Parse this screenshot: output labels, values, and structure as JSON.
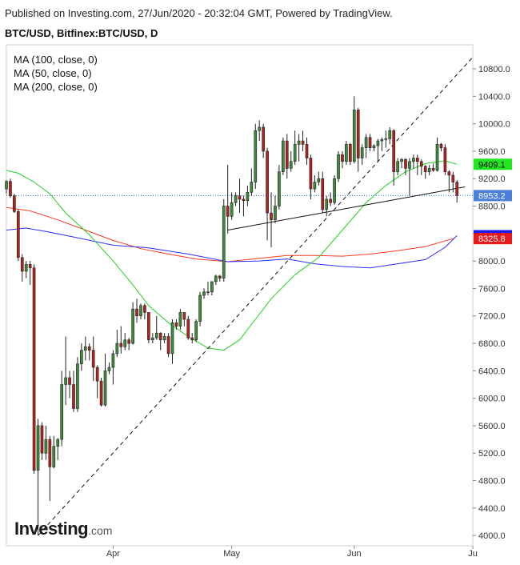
{
  "header": {
    "published": "Published on Investing.com, 27/Jun/2020 - 20:32:04 GMT, Powered by TradingView.",
    "symbol": "BTC/USD, Bitfinex:BTC/USD, D"
  },
  "indicators": [
    {
      "label": "MA (100, close, 0)",
      "color": "#2c2cff"
    },
    {
      "label": "MA (50, close, 0)",
      "color": "#ff3b1f"
    },
    {
      "label": "MA (200, close, 0)",
      "color": "#1fd21f"
    }
  ],
  "logo": {
    "main": "Investing",
    "suffix": ".com"
  },
  "chart_data": {
    "type": "candlestick",
    "x_ticks": [
      {
        "label": "Apr",
        "date": "2020-04-01"
      },
      {
        "label": "May",
        "date": "2020-05-01"
      },
      {
        "label": "Jun",
        "date": "2020-06-01"
      },
      {
        "label": "Ju",
        "date": "2020-07-01"
      }
    ],
    "y_ticks": [
      "4000.0",
      "4400.0",
      "4800.0",
      "5200.0",
      "5600.0",
      "6000.0",
      "6400.0",
      "6800.0",
      "7200.0",
      "7600.0",
      "8000.0",
      "8400.0",
      "8800.0",
      "9200.0",
      "9600.0",
      "10000.0",
      "10400.0",
      "10800.0"
    ],
    "ylim": [
      3850,
      11150
    ],
    "xlim": [
      "2020-03-05",
      "2020-07-01"
    ],
    "price_line": 8953.2,
    "badges": [
      {
        "label": "9409.1",
        "value": 9409.1,
        "bg": "#22e622",
        "fg": "#000000"
      },
      {
        "label": "8953.2",
        "value": 8953.2,
        "bg": "#4a7fdc",
        "fg": "#ffffff"
      },
      {
        "label": "8369.5",
        "value": 8369.5,
        "bg": "#1c1cf0",
        "fg": "#ffffff"
      },
      {
        "label": "8325.8",
        "value": 8325.8,
        "bg": "#e8191d",
        "fg": "#ffffff"
      }
    ],
    "colors": {
      "up": "#3c8c3c",
      "down": "#b2221e",
      "ma50": "#ff3b1f",
      "ma100": "#2c2cff",
      "ma200": "#1fd21f",
      "price_line": "#2f6fb3"
    },
    "trendlines": [
      {
        "style": "dashed",
        "from": [
          "2020-03-13",
          4000
        ],
        "to": [
          "2020-07-01",
          10970
        ]
      },
      {
        "style": "solid",
        "from": [
          "2020-04-30",
          8450
        ],
        "to": [
          "2020-06-29",
          9080
        ]
      }
    ],
    "ma50_points": [
      [
        "2020-03-05",
        8780
      ],
      [
        "2020-03-11",
        8730
      ],
      [
        "2020-03-18",
        8600
      ],
      [
        "2020-03-25",
        8450
      ],
      [
        "2020-04-01",
        8300
      ],
      [
        "2020-04-08",
        8180
      ],
      [
        "2020-04-15",
        8100
      ],
      [
        "2020-04-22",
        8030
      ],
      [
        "2020-04-30",
        7990
      ],
      [
        "2020-05-08",
        8040
      ],
      [
        "2020-05-15",
        8080
      ],
      [
        "2020-05-22",
        8080
      ],
      [
        "2020-05-29",
        8070
      ],
      [
        "2020-06-05",
        8100
      ],
      [
        "2020-06-12",
        8150
      ],
      [
        "2020-06-19",
        8210
      ],
      [
        "2020-06-26",
        8325.8
      ]
    ],
    "ma100_points": [
      [
        "2020-03-05",
        8450
      ],
      [
        "2020-03-10",
        8480
      ],
      [
        "2020-03-15",
        8430
      ],
      [
        "2020-03-22",
        8350
      ],
      [
        "2020-04-01",
        8230
      ],
      [
        "2020-04-10",
        8190
      ],
      [
        "2020-04-20",
        8100
      ],
      [
        "2020-04-30",
        7990
      ],
      [
        "2020-05-08",
        8000
      ],
      [
        "2020-05-15",
        8030
      ],
      [
        "2020-05-22",
        7960
      ],
      [
        "2020-05-29",
        7920
      ],
      [
        "2020-06-05",
        7900
      ],
      [
        "2020-06-12",
        7960
      ],
      [
        "2020-06-19",
        8020
      ],
      [
        "2020-06-24",
        8200
      ],
      [
        "2020-06-27",
        8369.5
      ]
    ],
    "ma200_points": [
      [
        "2020-03-05",
        9320
      ],
      [
        "2020-03-08",
        9280
      ],
      [
        "2020-03-12",
        9150
      ],
      [
        "2020-03-16",
        8980
      ],
      [
        "2020-03-20",
        8700
      ],
      [
        "2020-03-26",
        8380
      ],
      [
        "2020-04-01",
        8000
      ],
      [
        "2020-04-06",
        7650
      ],
      [
        "2020-04-10",
        7350
      ],
      [
        "2020-04-15",
        7100
      ],
      [
        "2020-04-20",
        6900
      ],
      [
        "2020-04-25",
        6730
      ],
      [
        "2020-04-29",
        6700
      ],
      [
        "2020-05-03",
        6850
      ],
      [
        "2020-05-07",
        7150
      ],
      [
        "2020-05-11",
        7450
      ],
      [
        "2020-05-17",
        7800
      ],
      [
        "2020-05-23",
        8050
      ],
      [
        "2020-05-29",
        8450
      ],
      [
        "2020-06-04",
        8850
      ],
      [
        "2020-06-09",
        9100
      ],
      [
        "2020-06-14",
        9300
      ],
      [
        "2020-06-19",
        9420
      ],
      [
        "2020-06-24",
        9460
      ],
      [
        "2020-06-27",
        9409.1
      ]
    ],
    "candles": [
      {
        "t": "2020-03-05",
        "o": 9050,
        "h": 9180,
        "l": 8980,
        "c": 9160
      },
      {
        "t": "2020-03-06",
        "o": 9160,
        "h": 9200,
        "l": 8920,
        "c": 8950
      },
      {
        "t": "2020-03-07",
        "o": 8950,
        "h": 8980,
        "l": 8700,
        "c": 8720
      },
      {
        "t": "2020-03-08",
        "o": 8720,
        "h": 8750,
        "l": 8000,
        "c": 8050
      },
      {
        "t": "2020-03-09",
        "o": 8050,
        "h": 8100,
        "l": 7700,
        "c": 7850
      },
      {
        "t": "2020-03-10",
        "o": 7850,
        "h": 8000,
        "l": 7750,
        "c": 7950
      },
      {
        "t": "2020-03-11",
        "o": 7950,
        "h": 8000,
        "l": 7650,
        "c": 7900
      },
      {
        "t": "2020-03-12",
        "o": 7900,
        "h": 7950,
        "l": 4900,
        "c": 4950
      },
      {
        "t": "2020-03-13",
        "o": 4950,
        "h": 5700,
        "l": 4000,
        "c": 5600
      },
      {
        "t": "2020-03-14",
        "o": 5600,
        "h": 5650,
        "l": 5100,
        "c": 5200
      },
      {
        "t": "2020-03-15",
        "o": 5200,
        "h": 5600,
        "l": 5100,
        "c": 5400
      },
      {
        "t": "2020-03-16",
        "o": 5400,
        "h": 5450,
        "l": 4500,
        "c": 5000
      },
      {
        "t": "2020-03-17",
        "o": 5000,
        "h": 5450,
        "l": 4980,
        "c": 5300
      },
      {
        "t": "2020-03-18",
        "o": 5300,
        "h": 5420,
        "l": 5100,
        "c": 5400
      },
      {
        "t": "2020-03-19",
        "o": 5400,
        "h": 6400,
        "l": 5300,
        "c": 6200
      },
      {
        "t": "2020-03-20",
        "o": 6200,
        "h": 6900,
        "l": 5900,
        "c": 6300
      },
      {
        "t": "2020-03-21",
        "o": 6300,
        "h": 6400,
        "l": 6000,
        "c": 6200
      },
      {
        "t": "2020-03-22",
        "o": 6200,
        "h": 6400,
        "l": 5800,
        "c": 5850
      },
      {
        "t": "2020-03-23",
        "o": 5850,
        "h": 6600,
        "l": 5800,
        "c": 6500
      },
      {
        "t": "2020-03-24",
        "o": 6500,
        "h": 6800,
        "l": 6400,
        "c": 6700
      },
      {
        "t": "2020-03-25",
        "o": 6700,
        "h": 6900,
        "l": 6550,
        "c": 6750
      },
      {
        "t": "2020-03-26",
        "o": 6750,
        "h": 6800,
        "l": 6550,
        "c": 6700
      },
      {
        "t": "2020-03-27",
        "o": 6700,
        "h": 6900,
        "l": 6250,
        "c": 6450
      },
      {
        "t": "2020-03-28",
        "o": 6450,
        "h": 6480,
        "l": 6000,
        "c": 6250
      },
      {
        "t": "2020-03-29",
        "o": 6250,
        "h": 6300,
        "l": 5880,
        "c": 5900
      },
      {
        "t": "2020-03-30",
        "o": 5900,
        "h": 6650,
        "l": 5880,
        "c": 6400
      },
      {
        "t": "2020-03-31",
        "o": 6400,
        "h": 6520,
        "l": 6350,
        "c": 6450
      },
      {
        "t": "2020-04-01",
        "o": 6450,
        "h": 6700,
        "l": 6200,
        "c": 6650
      },
      {
        "t": "2020-04-02",
        "o": 6650,
        "h": 7000,
        "l": 6600,
        "c": 6800
      },
      {
        "t": "2020-04-03",
        "o": 6800,
        "h": 7050,
        "l": 6650,
        "c": 6750
      },
      {
        "t": "2020-04-04",
        "o": 6750,
        "h": 6950,
        "l": 6700,
        "c": 6850
      },
      {
        "t": "2020-04-05",
        "o": 6850,
        "h": 6880,
        "l": 6700,
        "c": 6800
      },
      {
        "t": "2020-04-06",
        "o": 6800,
        "h": 7400,
        "l": 6780,
        "c": 7300
      },
      {
        "t": "2020-04-07",
        "o": 7300,
        "h": 7450,
        "l": 7100,
        "c": 7200
      },
      {
        "t": "2020-04-08",
        "o": 7200,
        "h": 7380,
        "l": 7150,
        "c": 7350
      },
      {
        "t": "2020-04-09",
        "o": 7350,
        "h": 7380,
        "l": 7150,
        "c": 7250
      },
      {
        "t": "2020-04-10",
        "o": 7250,
        "h": 7250,
        "l": 6800,
        "c": 6850
      },
      {
        "t": "2020-04-11",
        "o": 6850,
        "h": 6950,
        "l": 6800,
        "c": 6880
      },
      {
        "t": "2020-04-12",
        "o": 6880,
        "h": 7200,
        "l": 6850,
        "c": 6950
      },
      {
        "t": "2020-04-13",
        "o": 6950,
        "h": 6960,
        "l": 6700,
        "c": 6850
      },
      {
        "t": "2020-04-14",
        "o": 6850,
        "h": 6950,
        "l": 6800,
        "c": 6900
      },
      {
        "t": "2020-04-15",
        "o": 6900,
        "h": 6950,
        "l": 6600,
        "c": 6650
      },
      {
        "t": "2020-04-16",
        "o": 6650,
        "h": 7150,
        "l": 6500,
        "c": 7100
      },
      {
        "t": "2020-04-17",
        "o": 7100,
        "h": 7150,
        "l": 7000,
        "c": 7050
      },
      {
        "t": "2020-04-18",
        "o": 7050,
        "h": 7300,
        "l": 7000,
        "c": 7250
      },
      {
        "t": "2020-04-19",
        "o": 7250,
        "h": 7250,
        "l": 7050,
        "c": 7150
      },
      {
        "t": "2020-04-20",
        "o": 7150,
        "h": 7200,
        "l": 6850,
        "c": 6880
      },
      {
        "t": "2020-04-21",
        "o": 6880,
        "h": 6950,
        "l": 6800,
        "c": 6850
      },
      {
        "t": "2020-04-22",
        "o": 6850,
        "h": 7150,
        "l": 6820,
        "c": 7120
      },
      {
        "t": "2020-04-23",
        "o": 7120,
        "h": 7550,
        "l": 7050,
        "c": 7500
      },
      {
        "t": "2020-04-24",
        "o": 7500,
        "h": 7600,
        "l": 7450,
        "c": 7550
      },
      {
        "t": "2020-04-25",
        "o": 7550,
        "h": 7700,
        "l": 7500,
        "c": 7550
      },
      {
        "t": "2020-04-26",
        "o": 7550,
        "h": 7700,
        "l": 7500,
        "c": 7700
      },
      {
        "t": "2020-04-27",
        "o": 7700,
        "h": 7800,
        "l": 7650,
        "c": 7780
      },
      {
        "t": "2020-04-28",
        "o": 7780,
        "h": 7800,
        "l": 7700,
        "c": 7750
      },
      {
        "t": "2020-04-29",
        "o": 7750,
        "h": 8900,
        "l": 7700,
        "c": 8800
      },
      {
        "t": "2020-04-30",
        "o": 8800,
        "h": 9400,
        "l": 8400,
        "c": 8650
      },
      {
        "t": "2020-05-01",
        "o": 8650,
        "h": 9000,
        "l": 8600,
        "c": 8850
      },
      {
        "t": "2020-05-02",
        "o": 8850,
        "h": 9000,
        "l": 8800,
        "c": 8950
      },
      {
        "t": "2020-05-03",
        "o": 8950,
        "h": 9200,
        "l": 8700,
        "c": 8900
      },
      {
        "t": "2020-05-04",
        "o": 8900,
        "h": 8950,
        "l": 8650,
        "c": 8880
      },
      {
        "t": "2020-05-05",
        "o": 8880,
        "h": 9100,
        "l": 8800,
        "c": 9000
      },
      {
        "t": "2020-05-06",
        "o": 9000,
        "h": 9350,
        "l": 8950,
        "c": 9150
      },
      {
        "t": "2020-05-07",
        "o": 9150,
        "h": 10000,
        "l": 9050,
        "c": 9900
      },
      {
        "t": "2020-05-08",
        "o": 9900,
        "h": 10050,
        "l": 9750,
        "c": 9950
      },
      {
        "t": "2020-05-09",
        "o": 9950,
        "h": 10000,
        "l": 9500,
        "c": 9600
      },
      {
        "t": "2020-05-10",
        "o": 9600,
        "h": 9650,
        "l": 8300,
        "c": 8700
      },
      {
        "t": "2020-05-11",
        "o": 8700,
        "h": 9000,
        "l": 8200,
        "c": 8600
      },
      {
        "t": "2020-05-12",
        "o": 8600,
        "h": 8950,
        "l": 8550,
        "c": 8800
      },
      {
        "t": "2020-05-13",
        "o": 8800,
        "h": 9400,
        "l": 8750,
        "c": 9300
      },
      {
        "t": "2020-05-14",
        "o": 9300,
        "h": 9800,
        "l": 9250,
        "c": 9750
      },
      {
        "t": "2020-05-15",
        "o": 9750,
        "h": 9850,
        "l": 9200,
        "c": 9350
      },
      {
        "t": "2020-05-16",
        "o": 9350,
        "h": 9600,
        "l": 9300,
        "c": 9450
      },
      {
        "t": "2020-05-17",
        "o": 9450,
        "h": 9900,
        "l": 9400,
        "c": 9700
      },
      {
        "t": "2020-05-18",
        "o": 9700,
        "h": 9850,
        "l": 9450,
        "c": 9750
      },
      {
        "t": "2020-05-19",
        "o": 9750,
        "h": 9900,
        "l": 9600,
        "c": 9700
      },
      {
        "t": "2020-05-20",
        "o": 9700,
        "h": 9800,
        "l": 9400,
        "c": 9500
      },
      {
        "t": "2020-05-21",
        "o": 9500,
        "h": 9550,
        "l": 8900,
        "c": 9050
      },
      {
        "t": "2020-05-22",
        "o": 9050,
        "h": 9250,
        "l": 9000,
        "c": 9150
      },
      {
        "t": "2020-05-23",
        "o": 9150,
        "h": 9300,
        "l": 9100,
        "c": 9200
      },
      {
        "t": "2020-05-24",
        "o": 9200,
        "h": 9300,
        "l": 8700,
        "c": 8750
      },
      {
        "t": "2020-05-25",
        "o": 8750,
        "h": 8950,
        "l": 8650,
        "c": 8900
      },
      {
        "t": "2020-05-26",
        "o": 8900,
        "h": 9000,
        "l": 8800,
        "c": 8850
      },
      {
        "t": "2020-05-27",
        "o": 8850,
        "h": 9250,
        "l": 8820,
        "c": 9200
      },
      {
        "t": "2020-05-28",
        "o": 9200,
        "h": 9600,
        "l": 9150,
        "c": 9550
      },
      {
        "t": "2020-05-29",
        "o": 9550,
        "h": 9600,
        "l": 9350,
        "c": 9450
      },
      {
        "t": "2020-05-30",
        "o": 9450,
        "h": 9750,
        "l": 9400,
        "c": 9700
      },
      {
        "t": "2020-05-31",
        "o": 9700,
        "h": 9720,
        "l": 9400,
        "c": 9450
      },
      {
        "t": "2020-06-01",
        "o": 9450,
        "h": 10400,
        "l": 9420,
        "c": 10200
      },
      {
        "t": "2020-06-02",
        "o": 10200,
        "h": 10230,
        "l": 9300,
        "c": 9500
      },
      {
        "t": "2020-06-03",
        "o": 9500,
        "h": 9700,
        "l": 9400,
        "c": 9650
      },
      {
        "t": "2020-06-04",
        "o": 9650,
        "h": 9850,
        "l": 9500,
        "c": 9800
      },
      {
        "t": "2020-06-05",
        "o": 9800,
        "h": 9850,
        "l": 9600,
        "c": 9650
      },
      {
        "t": "2020-06-06",
        "o": 9650,
        "h": 9700,
        "l": 9600,
        "c": 9680
      },
      {
        "t": "2020-06-07",
        "o": 9680,
        "h": 9780,
        "l": 9450,
        "c": 9750
      },
      {
        "t": "2020-06-08",
        "o": 9750,
        "h": 9800,
        "l": 9600,
        "c": 9770
      },
      {
        "t": "2020-06-09",
        "o": 9770,
        "h": 9900,
        "l": 9650,
        "c": 9780
      },
      {
        "t": "2020-06-10",
        "o": 9780,
        "h": 9950,
        "l": 9700,
        "c": 9900
      },
      {
        "t": "2020-06-11",
        "o": 9900,
        "h": 9920,
        "l": 9100,
        "c": 9300
      },
      {
        "t": "2020-06-12",
        "o": 9300,
        "h": 9500,
        "l": 9250,
        "c": 9450
      },
      {
        "t": "2020-06-13",
        "o": 9450,
        "h": 9500,
        "l": 9350,
        "c": 9480
      },
      {
        "t": "2020-06-14",
        "o": 9480,
        "h": 9500,
        "l": 9250,
        "c": 9350
      },
      {
        "t": "2020-06-15",
        "o": 9350,
        "h": 9500,
        "l": 8950,
        "c": 9450
      },
      {
        "t": "2020-06-16",
        "o": 9450,
        "h": 9550,
        "l": 9350,
        "c": 9500
      },
      {
        "t": "2020-06-17",
        "o": 9500,
        "h": 9550,
        "l": 9250,
        "c": 9450
      },
      {
        "t": "2020-06-18",
        "o": 9450,
        "h": 9480,
        "l": 9250,
        "c": 9380
      },
      {
        "t": "2020-06-19",
        "o": 9380,
        "h": 9400,
        "l": 9200,
        "c": 9300
      },
      {
        "t": "2020-06-20",
        "o": 9300,
        "h": 9400,
        "l": 9250,
        "c": 9350
      },
      {
        "t": "2020-06-21",
        "o": 9350,
        "h": 9420,
        "l": 9300,
        "c": 9320
      },
      {
        "t": "2020-06-22",
        "o": 9320,
        "h": 9800,
        "l": 9300,
        "c": 9700
      },
      {
        "t": "2020-06-23",
        "o": 9700,
        "h": 9720,
        "l": 9600,
        "c": 9650
      },
      {
        "t": "2020-06-24",
        "o": 9650,
        "h": 9700,
        "l": 9250,
        "c": 9300
      },
      {
        "t": "2020-06-25",
        "o": 9300,
        "h": 9320,
        "l": 9000,
        "c": 9250
      },
      {
        "t": "2020-06-26",
        "o": 9250,
        "h": 9300,
        "l": 9000,
        "c": 9150
      },
      {
        "t": "2020-06-27",
        "o": 9150,
        "h": 9180,
        "l": 8850,
        "c": 8953.2
      }
    ]
  }
}
